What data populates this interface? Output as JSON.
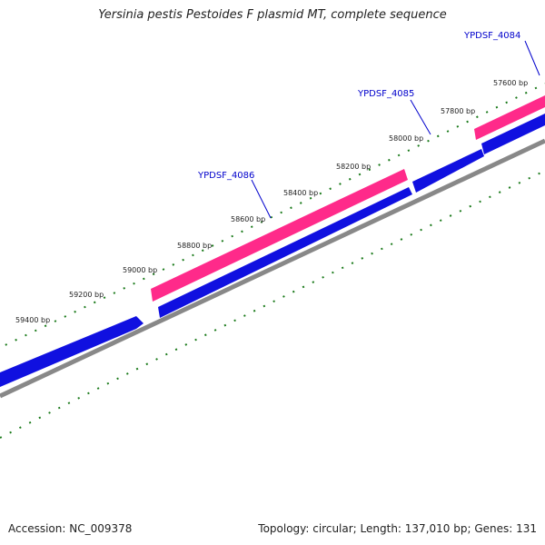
{
  "title": "Yersinia pestis Pestoides F plasmid MT, complete sequence",
  "footer": {
    "accession": "Accession: NC_009378",
    "summary": "Topology: circular; Length: 137,010 bp; Genes: 131"
  },
  "ticks": [
    "57600 bp",
    "57800 bp",
    "58000 bp",
    "58200 bp",
    "58400 bp",
    "58600 bp",
    "58800 bp",
    "59000 bp",
    "59200 bp",
    "59400 bp"
  ],
  "genes": [
    {
      "name": "YPDSF_4084"
    },
    {
      "name": "YPDSF_4085"
    },
    {
      "name": "YPDSF_4086"
    }
  ],
  "colors": {
    "forward_gene": "#ff2a8a",
    "cds": "#1010e0",
    "backbone": "#888888",
    "tick": "#1a7a1a",
    "label": "#0000cc"
  }
}
